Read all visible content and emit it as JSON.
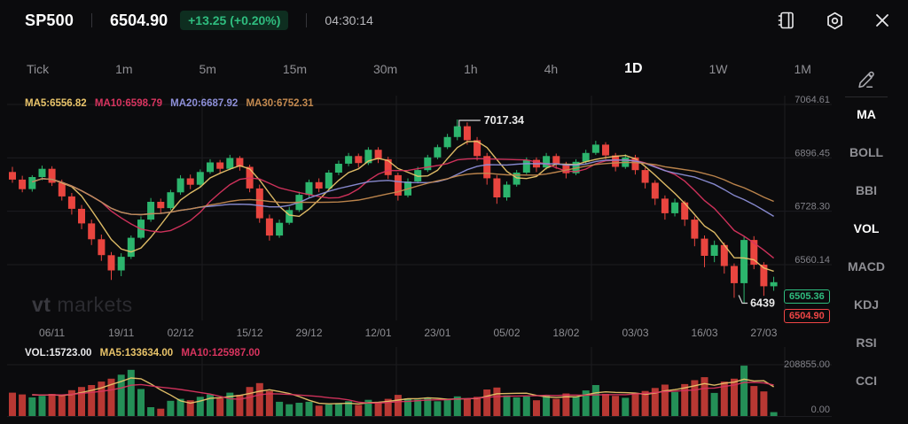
{
  "header": {
    "symbol": "SP500",
    "price": "6504.90",
    "change_badge": "+13.25 (+0.20%)",
    "time": "04:30:14",
    "icons": [
      "journal-icon",
      "settings-icon",
      "close-icon"
    ]
  },
  "timeframes": {
    "active": "1D",
    "items": [
      {
        "label": "Tick"
      },
      {
        "label": "1m"
      },
      {
        "label": "5m"
      },
      {
        "label": "15m"
      },
      {
        "label": "30m"
      },
      {
        "label": "1h"
      },
      {
        "label": "4h"
      },
      {
        "label": "1D"
      },
      {
        "label": "1W"
      },
      {
        "label": "1M"
      }
    ]
  },
  "indicators": {
    "active": [
      "MA",
      "VOL"
    ],
    "items": [
      {
        "label": "MA"
      },
      {
        "label": "BOLL"
      },
      {
        "label": "BBI"
      },
      {
        "label": "VOL"
      },
      {
        "label": "MACD"
      },
      {
        "label": "KDJ"
      },
      {
        "label": "RSI"
      },
      {
        "label": "CCI"
      }
    ]
  },
  "main_chart": {
    "ma_labels": [
      {
        "text": "MA5:6556.82",
        "color": "#e9c46a"
      },
      {
        "text": "MA10:6598.79",
        "color": "#d8345f"
      },
      {
        "text": "MA20:6687.92",
        "color": "#8d8fd8"
      },
      {
        "text": "MA30:6752.31",
        "color": "#c48a4f"
      }
    ],
    "annotations": {
      "high": "7017.34",
      "low": "6439"
    },
    "price_tags": [
      {
        "text": "6505.36",
        "color": "#2fbd7f"
      },
      {
        "text": "6504.90",
        "color": "#ef4545"
      }
    ],
    "watermark": {
      "bold": "vt",
      "rest": " markets"
    }
  },
  "volume_pane": {
    "labels": [
      {
        "text": "VOL:15723.00",
        "color": "#e8e8ea"
      },
      {
        "text": "MA5:133634.00",
        "color": "#e9c46a"
      },
      {
        "text": "MA10:125987.00",
        "color": "#d8345f"
      }
    ]
  },
  "chart_data": {
    "type": "candlestick",
    "title": "SP500 1D",
    "colors": {
      "up": "#2cb56d",
      "down": "#e9453f"
    },
    "price_axis": [
      {
        "v": 7064.61,
        "label": "7064.61"
      },
      {
        "v": 6896.45,
        "label": "6896.45"
      },
      {
        "v": 6728.3,
        "label": "6728.30"
      },
      {
        "v": 6560.14,
        "label": "6560.14"
      }
    ],
    "volume_axis": [
      {
        "v": 208855,
        "label": "208855.00"
      },
      {
        "v": 0,
        "label": "0.00"
      }
    ],
    "date_ticks": [
      {
        "i": 4,
        "label": "06/11"
      },
      {
        "i": 11,
        "label": "19/11"
      },
      {
        "i": 17,
        "label": "02/12"
      },
      {
        "i": 24,
        "label": "15/12"
      },
      {
        "i": 30,
        "label": "29/12"
      },
      {
        "i": 37,
        "label": "12/01"
      },
      {
        "i": 43,
        "label": "23/01"
      },
      {
        "i": 50,
        "label": "05/02"
      },
      {
        "i": 56,
        "label": "18/02"
      },
      {
        "i": 63,
        "label": "03/03"
      },
      {
        "i": 70,
        "label": "16/03"
      },
      {
        "i": 76,
        "label": "27/03"
      }
    ],
    "overlays": [
      {
        "name": "MA5",
        "period": 5,
        "color": "#e9c46a"
      },
      {
        "name": "MA10",
        "period": 10,
        "color": "#d8345f"
      },
      {
        "name": "MA20",
        "period": 20,
        "color": "#8d8fd8"
      },
      {
        "name": "MA30",
        "period": 30,
        "color": "#c48a4f"
      }
    ],
    "volume_overlays": [
      {
        "name": "MA5",
        "period": 5,
        "color": "#e9c46a"
      },
      {
        "name": "MA10",
        "period": 10,
        "color": "#d8345f"
      }
    ],
    "last_price": 6504.9,
    "prev_settle": 6505.36,
    "high_annotation": 7017.34,
    "low_annotation": 6439,
    "candles": [
      [
        6852,
        6868,
        6818,
        6828,
        95000
      ],
      [
        6828,
        6840,
        6788,
        6798,
        88000
      ],
      [
        6798,
        6842,
        6790,
        6836,
        76000
      ],
      [
        6836,
        6872,
        6826,
        6862,
        82000
      ],
      [
        6862,
        6870,
        6808,
        6818,
        90000
      ],
      [
        6818,
        6828,
        6762,
        6775,
        84000
      ],
      [
        6775,
        6786,
        6718,
        6736,
        105000
      ],
      [
        6736,
        6748,
        6672,
        6690,
        118000
      ],
      [
        6690,
        6702,
        6622,
        6640,
        126000
      ],
      [
        6640,
        6655,
        6572,
        6590,
        140000
      ],
      [
        6590,
        6600,
        6512,
        6542,
        152000
      ],
      [
        6542,
        6596,
        6524,
        6585,
        168000
      ],
      [
        6585,
        6652,
        6578,
        6645,
        188000
      ],
      [
        6645,
        6712,
        6640,
        6702,
        110000
      ],
      [
        6702,
        6770,
        6695,
        6758,
        36000
      ],
      [
        6758,
        6768,
        6722,
        6738,
        30000
      ],
      [
        6738,
        6796,
        6732,
        6788,
        62000
      ],
      [
        6788,
        6842,
        6780,
        6832,
        70000
      ],
      [
        6832,
        6844,
        6798,
        6812,
        64000
      ],
      [
        6812,
        6860,
        6806,
        6852,
        78000
      ],
      [
        6852,
        6892,
        6846,
        6882,
        88000
      ],
      [
        6882,
        6890,
        6848,
        6862,
        72000
      ],
      [
        6862,
        6906,
        6858,
        6896,
        95000
      ],
      [
        6896,
        6902,
        6856,
        6868,
        86000
      ],
      [
        6868,
        6875,
        6788,
        6800,
        118000
      ],
      [
        6800,
        6812,
        6692,
        6706,
        134000
      ],
      [
        6706,
        6718,
        6636,
        6652,
        102000
      ],
      [
        6652,
        6702,
        6645,
        6692,
        58000
      ],
      [
        6692,
        6742,
        6686,
        6732,
        48000
      ],
      [
        6732,
        6790,
        6726,
        6780,
        54000
      ],
      [
        6780,
        6828,
        6772,
        6820,
        58000
      ],
      [
        6820,
        6832,
        6788,
        6800,
        42000
      ],
      [
        6800,
        6858,
        6795,
        6850,
        47000
      ],
      [
        6850,
        6888,
        6842,
        6878,
        52000
      ],
      [
        6878,
        6912,
        6870,
        6902,
        60000
      ],
      [
        6902,
        6910,
        6866,
        6880,
        45000
      ],
      [
        6880,
        6930,
        6874,
        6922,
        66000
      ],
      [
        6922,
        6930,
        6880,
        6892,
        57000
      ],
      [
        6892,
        6900,
        6830,
        6842,
        70000
      ],
      [
        6842,
        6850,
        6762,
        6778,
        86000
      ],
      [
        6778,
        6832,
        6772,
        6822,
        72000
      ],
      [
        6822,
        6868,
        6816,
        6858,
        67000
      ],
      [
        6858,
        6906,
        6852,
        6898,
        75000
      ],
      [
        6898,
        6938,
        6892,
        6930,
        60000
      ],
      [
        6930,
        6972,
        6924,
        6962,
        66000
      ],
      [
        6962,
        7017.34,
        6952,
        6996,
        80000
      ],
      [
        6996,
        7008,
        6938,
        6952,
        72000
      ],
      [
        6952,
        6962,
        6888,
        6902,
        78000
      ],
      [
        6902,
        6912,
        6812,
        6832,
        108000
      ],
      [
        6832,
        6842,
        6752,
        6772,
        116000
      ],
      [
        6772,
        6822,
        6762,
        6812,
        84000
      ],
      [
        6812,
        6858,
        6806,
        6850,
        76000
      ],
      [
        6850,
        6898,
        6845,
        6890,
        80000
      ],
      [
        6890,
        6898,
        6852,
        6866,
        64000
      ],
      [
        6866,
        6912,
        6860,
        6902,
        86000
      ],
      [
        6902,
        6910,
        6862,
        6876,
        70000
      ],
      [
        6876,
        6884,
        6832,
        6848,
        92000
      ],
      [
        6848,
        6892,
        6842,
        6884,
        79000
      ],
      [
        6884,
        6922,
        6878,
        6912,
        104000
      ],
      [
        6912,
        6950,
        6906,
        6938,
        126000
      ],
      [
        6938,
        6946,
        6892,
        6904,
        90000
      ],
      [
        6904,
        6912,
        6854,
        6868,
        82000
      ],
      [
        6868,
        6908,
        6862,
        6898,
        74000
      ],
      [
        6898,
        6906,
        6844,
        6858,
        94000
      ],
      [
        6858,
        6866,
        6800,
        6818,
        102000
      ],
      [
        6818,
        6826,
        6748,
        6768,
        114000
      ],
      [
        6768,
        6778,
        6702,
        6722,
        128000
      ],
      [
        6722,
        6768,
        6712,
        6756,
        98000
      ],
      [
        6756,
        6762,
        6682,
        6702,
        130000
      ],
      [
        6702,
        6712,
        6618,
        6642,
        146000
      ],
      [
        6642,
        6652,
        6552,
        6588,
        158000
      ],
      [
        6588,
        6636,
        6568,
        6622,
        94000
      ],
      [
        6622,
        6630,
        6532,
        6556,
        140000
      ],
      [
        6556,
        6564,
        6456,
        6502,
        152000
      ],
      [
        6502,
        6648,
        6439,
        6638,
        205000
      ],
      [
        6638,
        6650,
        6546,
        6560,
        122000
      ],
      [
        6560,
        6568,
        6462,
        6492,
        100000
      ],
      [
        6492,
        6522,
        6478,
        6504.9,
        15723
      ]
    ]
  }
}
